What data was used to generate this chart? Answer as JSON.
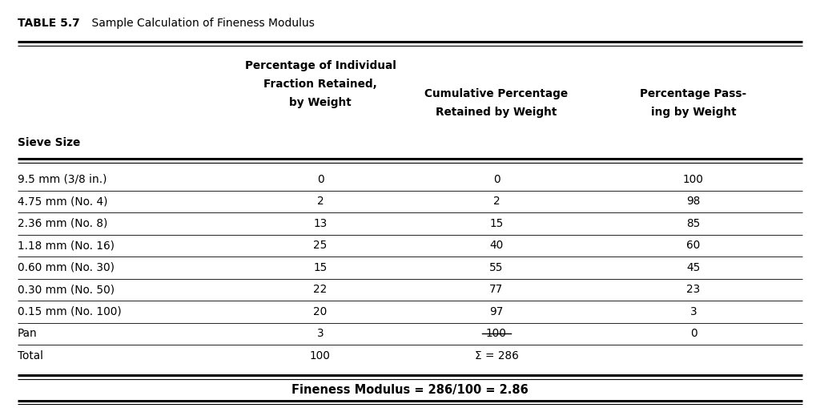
{
  "title_label": "TABLE 5.7",
  "title_text": "    Sample Calculation of Fineness Modulus",
  "col_headers_line1": [
    "",
    "Percentage of Individual",
    "Cumulative Percentage",
    "Percentage Pass-"
  ],
  "col_headers_line2": [
    "",
    "Fraction Retained,",
    "Retained by Weight",
    "ing by Weight"
  ],
  "col_headers_line3": [
    "Sieve Size",
    "by Weight",
    "",
    ""
  ],
  "rows": [
    [
      "9.5 mm (3/8 in.)",
      "0",
      "0",
      "100"
    ],
    [
      "4.75 mm (No. 4)",
      "2",
      "2",
      "98"
    ],
    [
      "2.36 mm (No. 8)",
      "13",
      "15",
      "85"
    ],
    [
      "1.18 mm (No. 16)",
      "25",
      "40",
      "60"
    ],
    [
      "0.60 mm (No. 30)",
      "15",
      "55",
      "45"
    ],
    [
      "0.30 mm (No. 50)",
      "22",
      "77",
      "23"
    ],
    [
      "0.15 mm (No. 100)",
      "20",
      "97",
      "3"
    ],
    [
      "Pan",
      "3",
      "100",
      "0"
    ],
    [
      "Total",
      "100",
      "Σ = 286",
      ""
    ]
  ],
  "footer": "Fineness Modulus = 286/100 = 2.86",
  "bg_color": "#ffffff",
  "text_color": "#000000",
  "strikethrough_row": 7
}
